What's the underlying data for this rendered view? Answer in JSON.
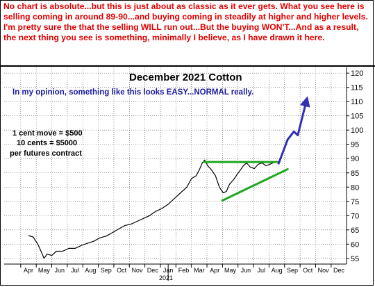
{
  "header": {
    "text": "No chart is absolute...but this is just about as classic as it ever gets. What you see here is selling coming in around 89-90...and buying coming in steadily at higher and higher levels. I'm pretty sure the that the selling WILL run out...But the buying WON'T...And as a result, the next thing you see is something, minimally I believe, as I have drawn it here."
  },
  "annotations": {
    "opinion": "In my opinion, something like this looks EASY...NORMAL really.",
    "note_line1": "1 cent move = $500",
    "note_line2": "10 cents = $5000",
    "note_line3": "per futures contract"
  },
  "colors": {
    "header_text": "#e00000",
    "price_line": "#000000",
    "trend_lines": "#1fa81f",
    "projection": "#3030b0",
    "opinion_text": "#1a1aa0",
    "grid": "#555555"
  },
  "chart_data": {
    "type": "line",
    "title": "December 2021 Cotton",
    "xlabel": "",
    "ylabel": "",
    "ylim": [
      53,
      122
    ],
    "yticks": [
      55,
      60,
      65,
      70,
      75,
      80,
      85,
      90,
      95,
      100,
      105,
      110,
      115,
      120
    ],
    "xticks": [
      "Apr",
      "May",
      "Jun",
      "Jul",
      "Aug",
      "Sep",
      "Oct",
      "Nov",
      "Dec",
      "Jan",
      "Feb",
      "Mar",
      "Apr",
      "May",
      "Jun",
      "Jul",
      "Aug",
      "Sep",
      "Oct",
      "Nov",
      "Dec"
    ],
    "year_label": "2021",
    "grid": true,
    "y_axis_side": "right",
    "series": [
      {
        "values": [
          [
            0,
            63
          ],
          [
            0.3,
            62.5
          ],
          [
            0.6,
            60
          ],
          [
            0.85,
            57
          ],
          [
            1.0,
            55
          ],
          [
            1.2,
            56.5
          ],
          [
            1.5,
            56
          ],
          [
            1.8,
            57.5
          ],
          [
            2.2,
            57.5
          ],
          [
            2.6,
            58.5
          ],
          [
            3.0,
            58.5
          ],
          [
            3.4,
            59.5
          ],
          [
            3.8,
            60.3
          ],
          [
            4.2,
            61
          ],
          [
            4.6,
            62.2
          ],
          [
            5.0,
            62.8
          ],
          [
            5.4,
            64
          ],
          [
            5.8,
            65.3
          ],
          [
            6.2,
            66.5
          ],
          [
            6.6,
            67
          ],
          [
            7.0,
            68
          ],
          [
            7.4,
            69
          ],
          [
            7.8,
            70
          ],
          [
            8.2,
            71.5
          ],
          [
            8.6,
            72.5
          ],
          [
            9.0,
            74
          ],
          [
            9.4,
            76
          ],
          [
            9.8,
            78
          ],
          [
            10.2,
            80
          ],
          [
            10.5,
            83
          ],
          [
            10.8,
            84
          ],
          [
            11.0,
            86
          ],
          [
            11.2,
            88.5
          ],
          [
            11.35,
            89.5
          ],
          [
            11.55,
            87.5
          ],
          [
            11.8,
            86
          ],
          [
            12.05,
            84
          ],
          [
            12.3,
            80
          ],
          [
            12.55,
            78
          ],
          [
            12.75,
            78.5
          ],
          [
            12.95,
            81
          ],
          [
            13.2,
            82.5
          ],
          [
            13.45,
            84.5
          ],
          [
            13.65,
            86
          ],
          [
            13.85,
            87.5
          ],
          [
            14.05,
            88.5
          ],
          [
            14.3,
            87
          ],
          [
            14.55,
            86.5
          ],
          [
            14.8,
            88
          ],
          [
            15.05,
            88.5
          ],
          [
            15.3,
            87.5
          ],
          [
            15.55,
            88
          ],
          [
            15.75,
            88.5
          ],
          [
            16.0,
            89
          ],
          [
            16.2,
            88.8
          ]
        ]
      }
    ],
    "trend_lines": [
      {
        "from": [
          11.3,
          88.8
        ],
        "to": [
          16.0,
          88.8
        ]
      },
      {
        "from": [
          12.5,
          75.3
        ],
        "to": [
          16.7,
          86.3
        ]
      }
    ],
    "projection": [
      [
        16.1,
        88.0
      ],
      [
        16.7,
        96.7
      ],
      [
        17.1,
        99.5
      ],
      [
        17.35,
        98.2
      ],
      [
        17.95,
        111.2
      ]
    ]
  }
}
